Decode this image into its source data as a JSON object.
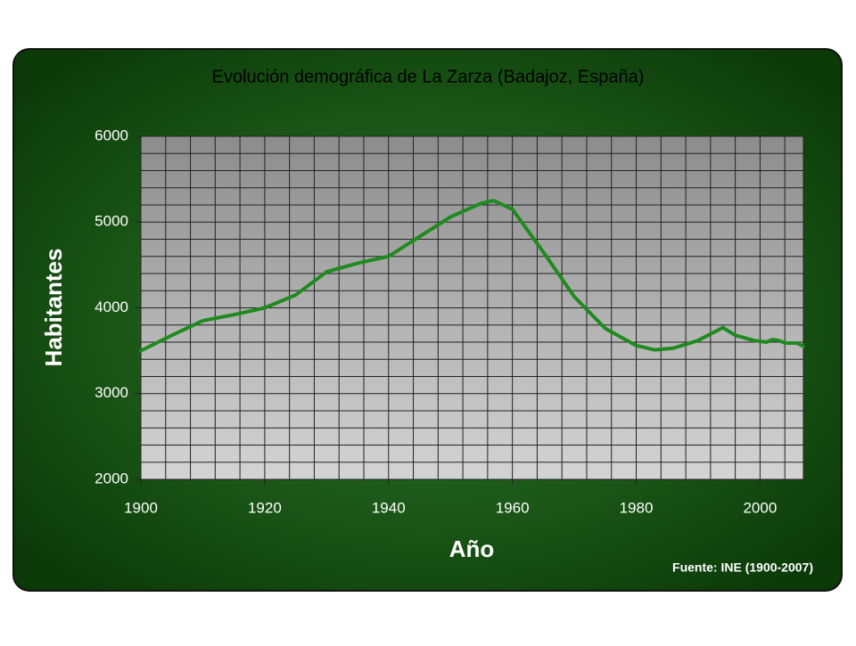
{
  "chart_data": {
    "type": "line",
    "title": "Evolución demográfica de La Zarza (Badajoz, España)",
    "x_label": "Año",
    "y_label": "Habitantes",
    "source": "Fuente: INE (1900-2007)",
    "x": [
      1900,
      1905,
      1910,
      1915,
      1920,
      1925,
      1930,
      1935,
      1940,
      1945,
      1950,
      1955,
      1957,
      1960,
      1965,
      1970,
      1975,
      1980,
      1983,
      1986,
      1990,
      1994,
      1996,
      1999,
      2001,
      2002,
      2003,
      2004,
      2006,
      2007
    ],
    "values": [
      3500,
      3680,
      3850,
      3920,
      4000,
      4150,
      4420,
      4520,
      4600,
      4830,
      5060,
      5220,
      5250,
      5150,
      4650,
      4130,
      3760,
      3560,
      3510,
      3530,
      3620,
      3770,
      3680,
      3620,
      3600,
      3630,
      3620,
      3590,
      3590,
      3550
    ],
    "color": "#1f8a1f",
    "xlim": [
      1900,
      2007
    ],
    "xticks": [
      1900,
      1920,
      1940,
      1960,
      1980,
      2000
    ],
    "ylim": [
      2000,
      6000
    ],
    "yticks": [
      2000,
      3000,
      4000,
      5000,
      6000
    ],
    "grid": true,
    "minor_grid": {
      "x": 4,
      "y": 200
    }
  }
}
